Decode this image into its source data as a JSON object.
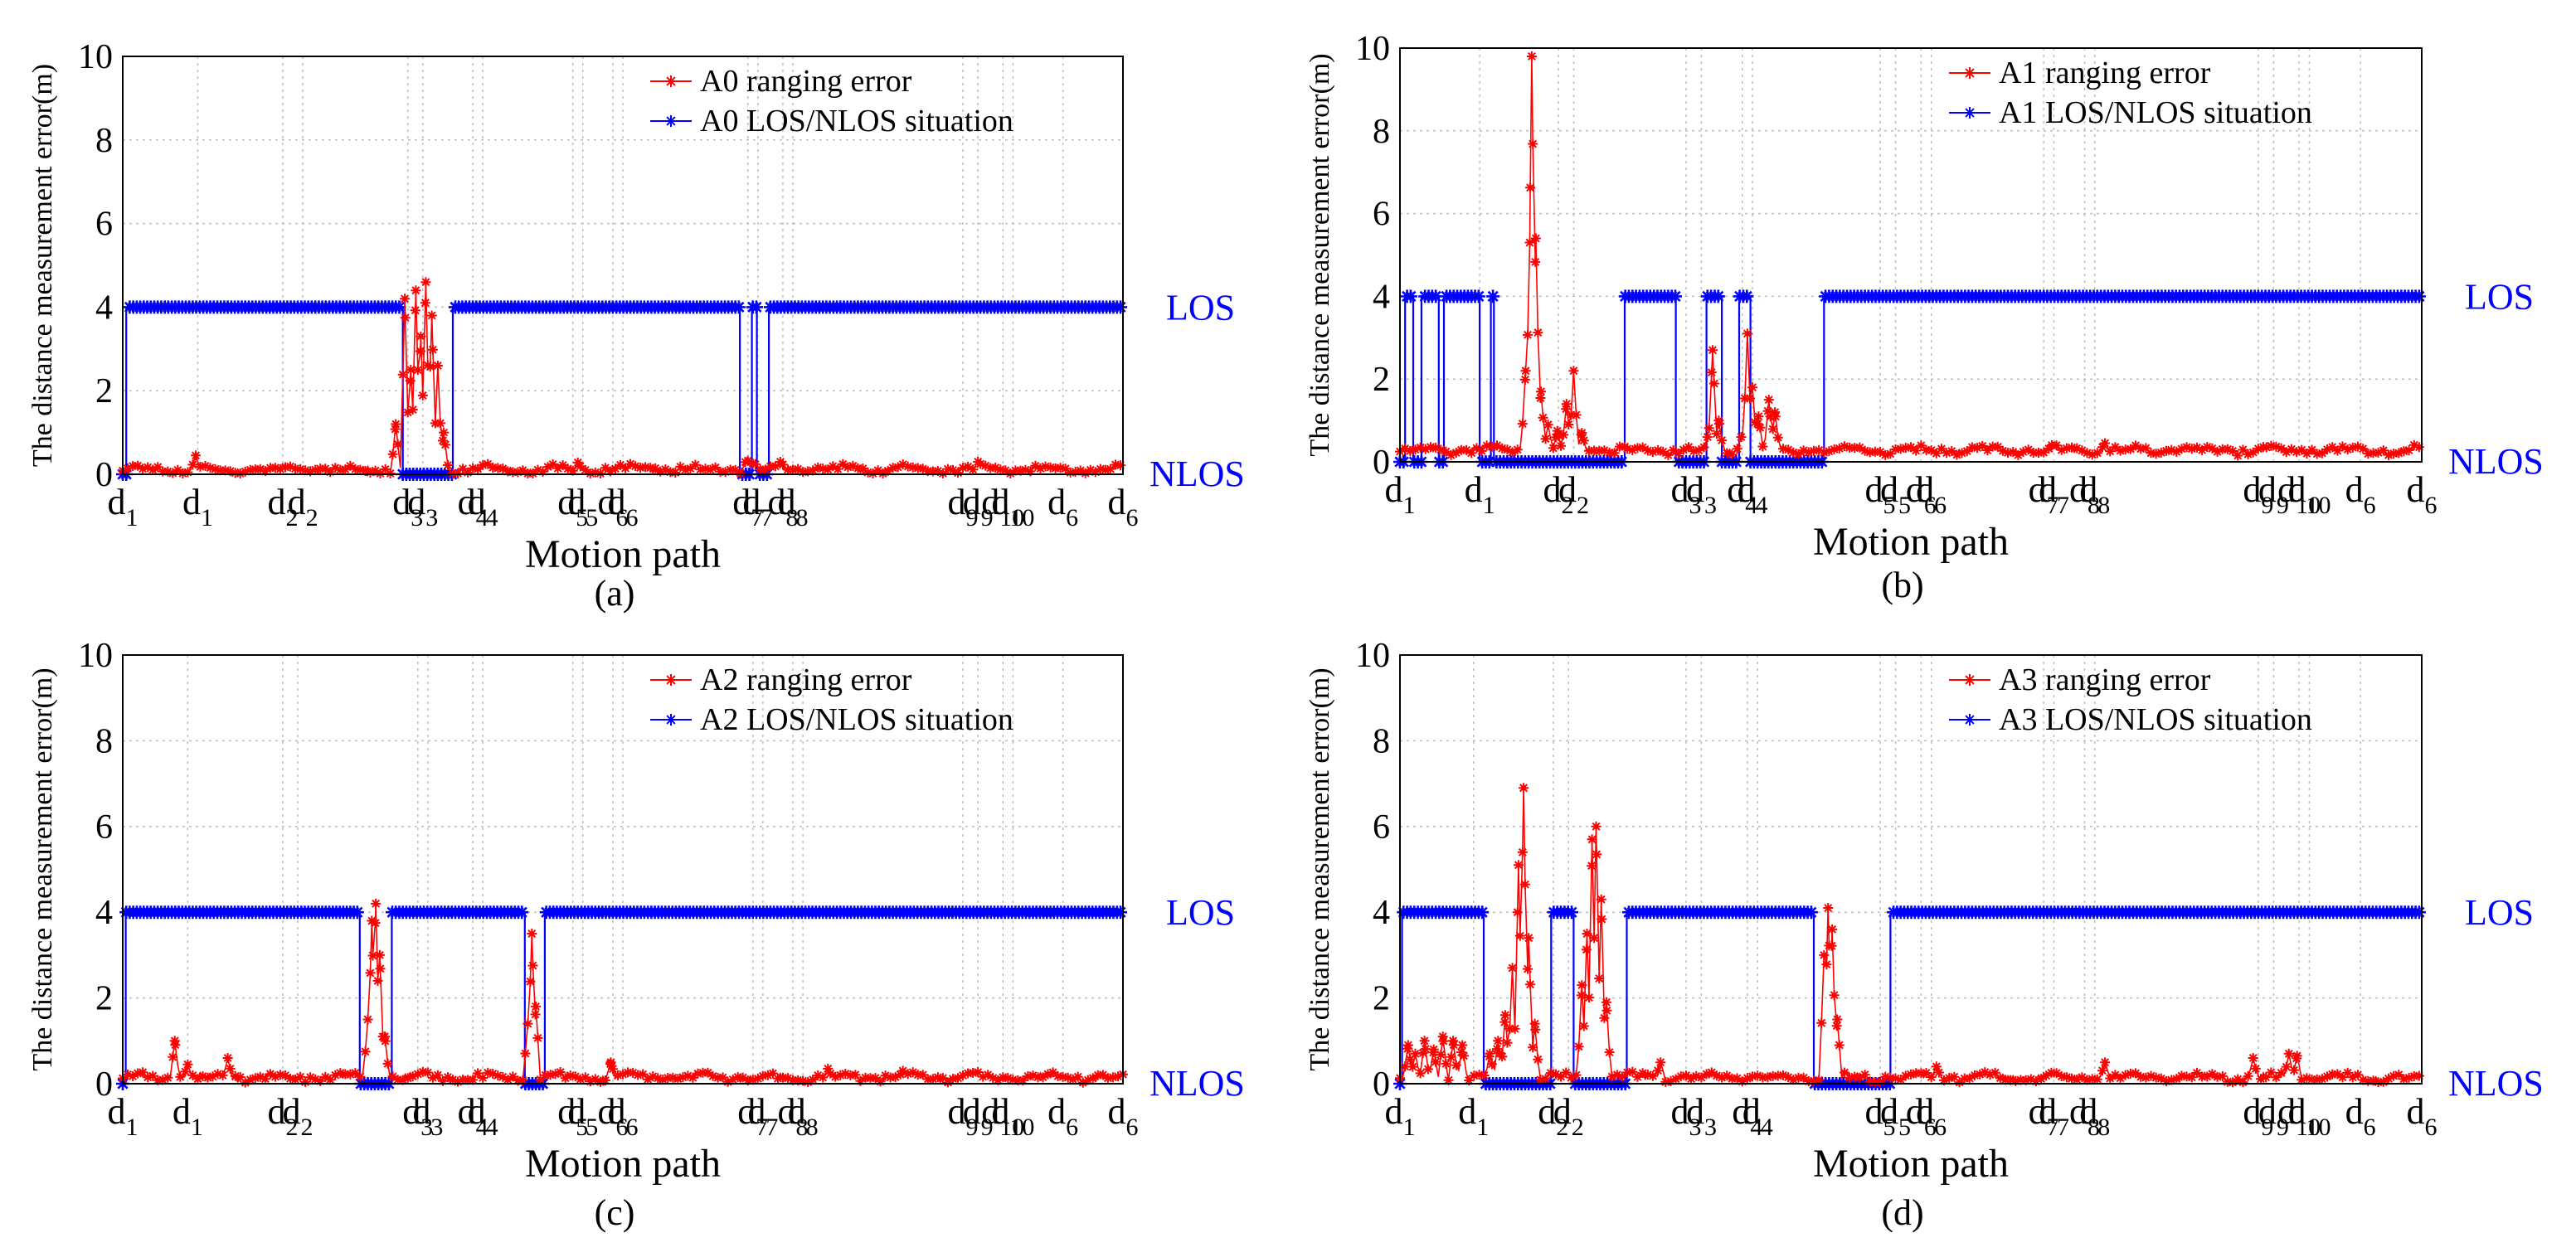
{
  "figure": {
    "panels": [
      "(a)",
      "(b)",
      "(c)",
      "(d)"
    ]
  },
  "chart_data": [
    {
      "panel": "(a)",
      "type": "line",
      "ylabel": "The distance measurement error(m)",
      "xlabel": "Motion path",
      "ylim": [
        0,
        10
      ],
      "yticks": [
        0,
        2,
        4,
        6,
        8,
        10
      ],
      "xticks": [
        {
          "label": "d",
          "sub": "1",
          "x": 0
        },
        {
          "label": "d",
          "sub": "1",
          "x": 7.5
        },
        {
          "label": "d",
          "sub": "2",
          "x": 16
        },
        {
          "label": "d",
          "sub": "2",
          "x": 18
        },
        {
          "label": "d",
          "sub": "3",
          "x": 28.5
        },
        {
          "label": "d",
          "sub": "3",
          "x": 30
        },
        {
          "label": "d",
          "sub": "4",
          "x": 35
        },
        {
          "label": "d",
          "sub": "4",
          "x": 36
        },
        {
          "label": "d",
          "sub": "5",
          "x": 45
        },
        {
          "label": "d",
          "sub": "5",
          "x": 46
        },
        {
          "label": "d",
          "sub": "6",
          "x": 49
        },
        {
          "label": "d",
          "sub": "6",
          "x": 50
        },
        {
          "label": "d",
          "sub": "7",
          "x": 62.5
        },
        {
          "label": "d",
          "sub": "7",
          "x": 63.5
        },
        {
          "label": "d",
          "sub": "8",
          "x": 66
        },
        {
          "label": "d",
          "sub": "8",
          "x": 67
        },
        {
          "label": "d",
          "sub": "9",
          "x": 84
        },
        {
          "label": "d",
          "sub": "9",
          "x": 85.5
        },
        {
          "label": "d",
          "sub": "10",
          "x": 88
        },
        {
          "label": "d",
          "sub": "10",
          "x": 89
        },
        {
          "label": "d",
          "sub": "6",
          "x": 94
        },
        {
          "label": "d",
          "sub": "6",
          "x": 100
        }
      ],
      "grid": true,
      "legend_position": "top-right",
      "state_labels": [
        "LOS",
        "NLOS"
      ],
      "series": [
        {
          "name": "A0 ranging error",
          "color": "#ff0000",
          "marker": "*",
          "base": 0.12,
          "spikes": [
            [
              7.3,
              0.45
            ],
            [
              27.3,
              1.2
            ],
            [
              28.2,
              4.2
            ],
            [
              28.8,
              2.5
            ],
            [
              29.3,
              4.4
            ],
            [
              29.8,
              3.3
            ],
            [
              30.3,
              4.6
            ],
            [
              30.9,
              3.8
            ],
            [
              31.5,
              2.6
            ],
            [
              32.1,
              1.0
            ],
            [
              45.5,
              0.28
            ],
            [
              62.4,
              0.38
            ],
            [
              63.1,
              0.3
            ],
            [
              65.8,
              0.32
            ],
            [
              85.5,
              0.3
            ]
          ]
        },
        {
          "name": "A0 LOS/NLOS situation",
          "color": "#0000ff",
          "marker": "*",
          "los_value": 4,
          "nlos_value": 0,
          "nlos_intervals": [
            [
              0,
              0.35
            ],
            [
              28,
              33
            ],
            [
              61.7,
              62.9
            ],
            [
              63.4,
              64.6
            ]
          ]
        }
      ]
    },
    {
      "panel": "(b)",
      "type": "line",
      "ylabel": "The distance measurement error(m)",
      "xlabel": "Motion path",
      "ylim": [
        0,
        10
      ],
      "yticks": [
        0,
        2,
        4,
        6,
        8,
        10
      ],
      "xticks": [
        {
          "label": "d",
          "sub": "1",
          "x": 0
        },
        {
          "label": "d",
          "sub": "1",
          "x": 7.8
        },
        {
          "label": "d",
          "sub": "2",
          "x": 15.5
        },
        {
          "label": "d",
          "sub": "2",
          "x": 17
        },
        {
          "label": "d",
          "sub": "3",
          "x": 28
        },
        {
          "label": "d",
          "sub": "3",
          "x": 29.5
        },
        {
          "label": "d",
          "sub": "4",
          "x": 33.5
        },
        {
          "label": "d",
          "sub": "4",
          "x": 34.5
        },
        {
          "label": "d",
          "sub": "5",
          "x": 47
        },
        {
          "label": "d",
          "sub": "5",
          "x": 48.5
        },
        {
          "label": "d",
          "sub": "6",
          "x": 51
        },
        {
          "label": "d",
          "sub": "6",
          "x": 52
        },
        {
          "label": "d",
          "sub": "7",
          "x": 63
        },
        {
          "label": "d",
          "sub": "7",
          "x": 64
        },
        {
          "label": "d",
          "sub": "8",
          "x": 67
        },
        {
          "label": "d",
          "sub": "8",
          "x": 68
        },
        {
          "label": "d",
          "sub": "9",
          "x": 84
        },
        {
          "label": "d",
          "sub": "9",
          "x": 85.5
        },
        {
          "label": "d",
          "sub": "10",
          "x": 88
        },
        {
          "label": "d",
          "sub": "10",
          "x": 89
        },
        {
          "label": "d",
          "sub": "6",
          "x": 94
        },
        {
          "label": "d",
          "sub": "6",
          "x": 100
        }
      ],
      "grid": true,
      "legend_position": "top-right",
      "state_labels": [
        "LOS",
        "NLOS"
      ],
      "series": [
        {
          "name": "A1 ranging error",
          "color": "#ff0000",
          "marker": "*",
          "base": 0.28,
          "spikes": [
            [
              12.3,
              2.2
            ],
            [
              12.7,
              5.3
            ],
            [
              12.9,
              9.8
            ],
            [
              13.3,
              5.4
            ],
            [
              13.8,
              1.7
            ],
            [
              14.5,
              0.9
            ],
            [
              15.4,
              0.75
            ],
            [
              16.3,
              1.4
            ],
            [
              17,
              2.2
            ],
            [
              17.8,
              0.7
            ],
            [
              22,
              0.3
            ],
            [
              30.1,
              0.6
            ],
            [
              30.6,
              2.7
            ],
            [
              31.2,
              1.0
            ],
            [
              33.4,
              0.6
            ],
            [
              34,
              3.1
            ],
            [
              34.5,
              1.8
            ],
            [
              35.1,
              1.1
            ],
            [
              36.1,
              1.5
            ],
            [
              36.7,
              1.2
            ],
            [
              63.8,
              0.4
            ],
            [
              69,
              0.45
            ],
            [
              84.8,
              0.35
            ]
          ]
        },
        {
          "name": "A1 LOS/NLOS situation",
          "color": "#0000ff",
          "marker": "*",
          "los_value": 4,
          "nlos_value": 0,
          "nlos_intervals": [
            [
              0,
              0.5
            ],
            [
              1.3,
              2.1
            ],
            [
              3.8,
              4.3
            ],
            [
              7.8,
              8.9
            ],
            [
              9.2,
              22
            ],
            [
              27,
              30
            ],
            [
              31.5,
              33.2
            ],
            [
              34.3,
              41.5
            ]
          ]
        }
      ]
    },
    {
      "panel": "(c)",
      "type": "line",
      "ylabel": "The distance measurement error(m)",
      "xlabel": "Motion path",
      "ylim": [
        0,
        10
      ],
      "yticks": [
        0,
        2,
        4,
        6,
        8,
        10
      ],
      "xticks": [
        {
          "label": "d",
          "sub": "1",
          "x": 0
        },
        {
          "label": "d",
          "sub": "1",
          "x": 6.5
        },
        {
          "label": "d",
          "sub": "2",
          "x": 16
        },
        {
          "label": "d",
          "sub": "2",
          "x": 17.5
        },
        {
          "label": "d",
          "sub": "3",
          "x": 29.5
        },
        {
          "label": "d",
          "sub": "3",
          "x": 30.5
        },
        {
          "label": "d",
          "sub": "4",
          "x": 35
        },
        {
          "label": "d",
          "sub": "4",
          "x": 36
        },
        {
          "label": "d",
          "sub": "5",
          "x": 45
        },
        {
          "label": "d",
          "sub": "5",
          "x": 46
        },
        {
          "label": "d",
          "sub": "6",
          "x": 49
        },
        {
          "label": "d",
          "sub": "6",
          "x": 50
        },
        {
          "label": "d",
          "sub": "7",
          "x": 63
        },
        {
          "label": "d",
          "sub": "7",
          "x": 64
        },
        {
          "label": "d",
          "sub": "8",
          "x": 67
        },
        {
          "label": "d",
          "sub": "8",
          "x": 68
        },
        {
          "label": "d",
          "sub": "9",
          "x": 84
        },
        {
          "label": "d",
          "sub": "9",
          "x": 85.5
        },
        {
          "label": "d",
          "sub": "10",
          "x": 88
        },
        {
          "label": "d",
          "sub": "10",
          "x": 89
        },
        {
          "label": "d",
          "sub": "6",
          "x": 94
        },
        {
          "label": "d",
          "sub": "6",
          "x": 100
        }
      ],
      "grid": true,
      "legend_position": "top-right",
      "state_labels": [
        "LOS",
        "NLOS"
      ],
      "series": [
        {
          "name": "A2 ranging error",
          "color": "#ff0000",
          "marker": "*",
          "base": 0.15,
          "spikes": [
            [
              5.2,
              1.0
            ],
            [
              6.5,
              0.45
            ],
            [
              10.5,
              0.6
            ],
            [
              24.5,
              1.5
            ],
            [
              24.9,
              3.8
            ],
            [
              25.3,
              4.2
            ],
            [
              25.7,
              3.0
            ],
            [
              26.2,
              1.1
            ],
            [
              40.5,
              1.4
            ],
            [
              40.9,
              3.5
            ],
            [
              41.3,
              1.8
            ],
            [
              48.8,
              0.5
            ],
            [
              70.5,
              0.35
            ],
            [
              78,
              0.3
            ]
          ]
        },
        {
          "name": "A2 LOS/NLOS situation",
          "color": "#0000ff",
          "marker": "*",
          "los_value": 4,
          "nlos_value": 0,
          "nlos_intervals": [
            [
              0,
              0.3
            ],
            [
              23.7,
              26.9
            ],
            [
              40.2,
              42.2
            ]
          ]
        }
      ]
    },
    {
      "panel": "(d)",
      "type": "line",
      "ylabel": "The distance measurement error(m)",
      "xlabel": "Motion path",
      "ylim": [
        0,
        10
      ],
      "yticks": [
        0,
        2,
        4,
        6,
        8,
        10
      ],
      "xticks": [
        {
          "label": "d",
          "sub": "1",
          "x": 0
        },
        {
          "label": "d",
          "sub": "1",
          "x": 7.2
        },
        {
          "label": "d",
          "sub": "2",
          "x": 15
        },
        {
          "label": "d",
          "sub": "2",
          "x": 16.5
        },
        {
          "label": "d",
          "sub": "3",
          "x": 28
        },
        {
          "label": "d",
          "sub": "3",
          "x": 29.5
        },
        {
          "label": "d",
          "sub": "4",
          "x": 34
        },
        {
          "label": "d",
          "sub": "4",
          "x": 35
        },
        {
          "label": "d",
          "sub": "5",
          "x": 47
        },
        {
          "label": "d",
          "sub": "5",
          "x": 48.5
        },
        {
          "label": "d",
          "sub": "6",
          "x": 51
        },
        {
          "label": "d",
          "sub": "6",
          "x": 52
        },
        {
          "label": "d",
          "sub": "7",
          "x": 63
        },
        {
          "label": "d",
          "sub": "7",
          "x": 64
        },
        {
          "label": "d",
          "sub": "8",
          "x": 67
        },
        {
          "label": "d",
          "sub": "8",
          "x": 68
        },
        {
          "label": "d",
          "sub": "9",
          "x": 84
        },
        {
          "label": "d",
          "sub": "9",
          "x": 85.5
        },
        {
          "label": "d",
          "sub": "10",
          "x": 88
        },
        {
          "label": "d",
          "sub": "10",
          "x": 89
        },
        {
          "label": "d",
          "sub": "6",
          "x": 94
        },
        {
          "label": "d",
          "sub": "6",
          "x": 100
        }
      ],
      "grid": true,
      "legend_position": "top-right",
      "state_labels": [
        "LOS",
        "NLOS"
      ],
      "series": [
        {
          "name": "A3 ranging error",
          "color": "#ff0000",
          "marker": "*",
          "base": 0.15,
          "spikes": [
            [
              0.8,
              0.9
            ],
            [
              1.5,
              0.7
            ],
            [
              2.4,
              1.0
            ],
            [
              3.3,
              0.8
            ],
            [
              4.2,
              1.1
            ],
            [
              5.2,
              1.0
            ],
            [
              6.1,
              0.9
            ],
            [
              8.8,
              0.7
            ],
            [
              9.6,
              1.0
            ],
            [
              10.3,
              1.6
            ],
            [
              11,
              2.7
            ],
            [
              11.6,
              5.1
            ],
            [
              12.1,
              6.9
            ],
            [
              12.6,
              3.4
            ],
            [
              13.2,
              1.4
            ],
            [
              17.8,
              2.3
            ],
            [
              18.3,
              3.5
            ],
            [
              18.8,
              5.7
            ],
            [
              19.2,
              6.0
            ],
            [
              19.7,
              4.3
            ],
            [
              20.2,
              1.9
            ],
            [
              25.5,
              0.5
            ],
            [
              41.5,
              3.0
            ],
            [
              41.9,
              4.1
            ],
            [
              42.3,
              3.6
            ],
            [
              42.8,
              1.5
            ],
            [
              52.5,
              0.4
            ],
            [
              69,
              0.5
            ],
            [
              83.5,
              0.6
            ],
            [
              87,
              0.7
            ],
            [
              87.8,
              0.65
            ]
          ]
        },
        {
          "name": "A3 LOS/NLOS situation",
          "color": "#0000ff",
          "marker": "*",
          "los_value": 4,
          "nlos_value": 0,
          "nlos_intervals": [
            [
              0,
              0.2
            ],
            [
              8.2,
              14.8
            ],
            [
              17,
              22.2
            ],
            [
              40.5,
              48
            ]
          ]
        }
      ]
    }
  ]
}
